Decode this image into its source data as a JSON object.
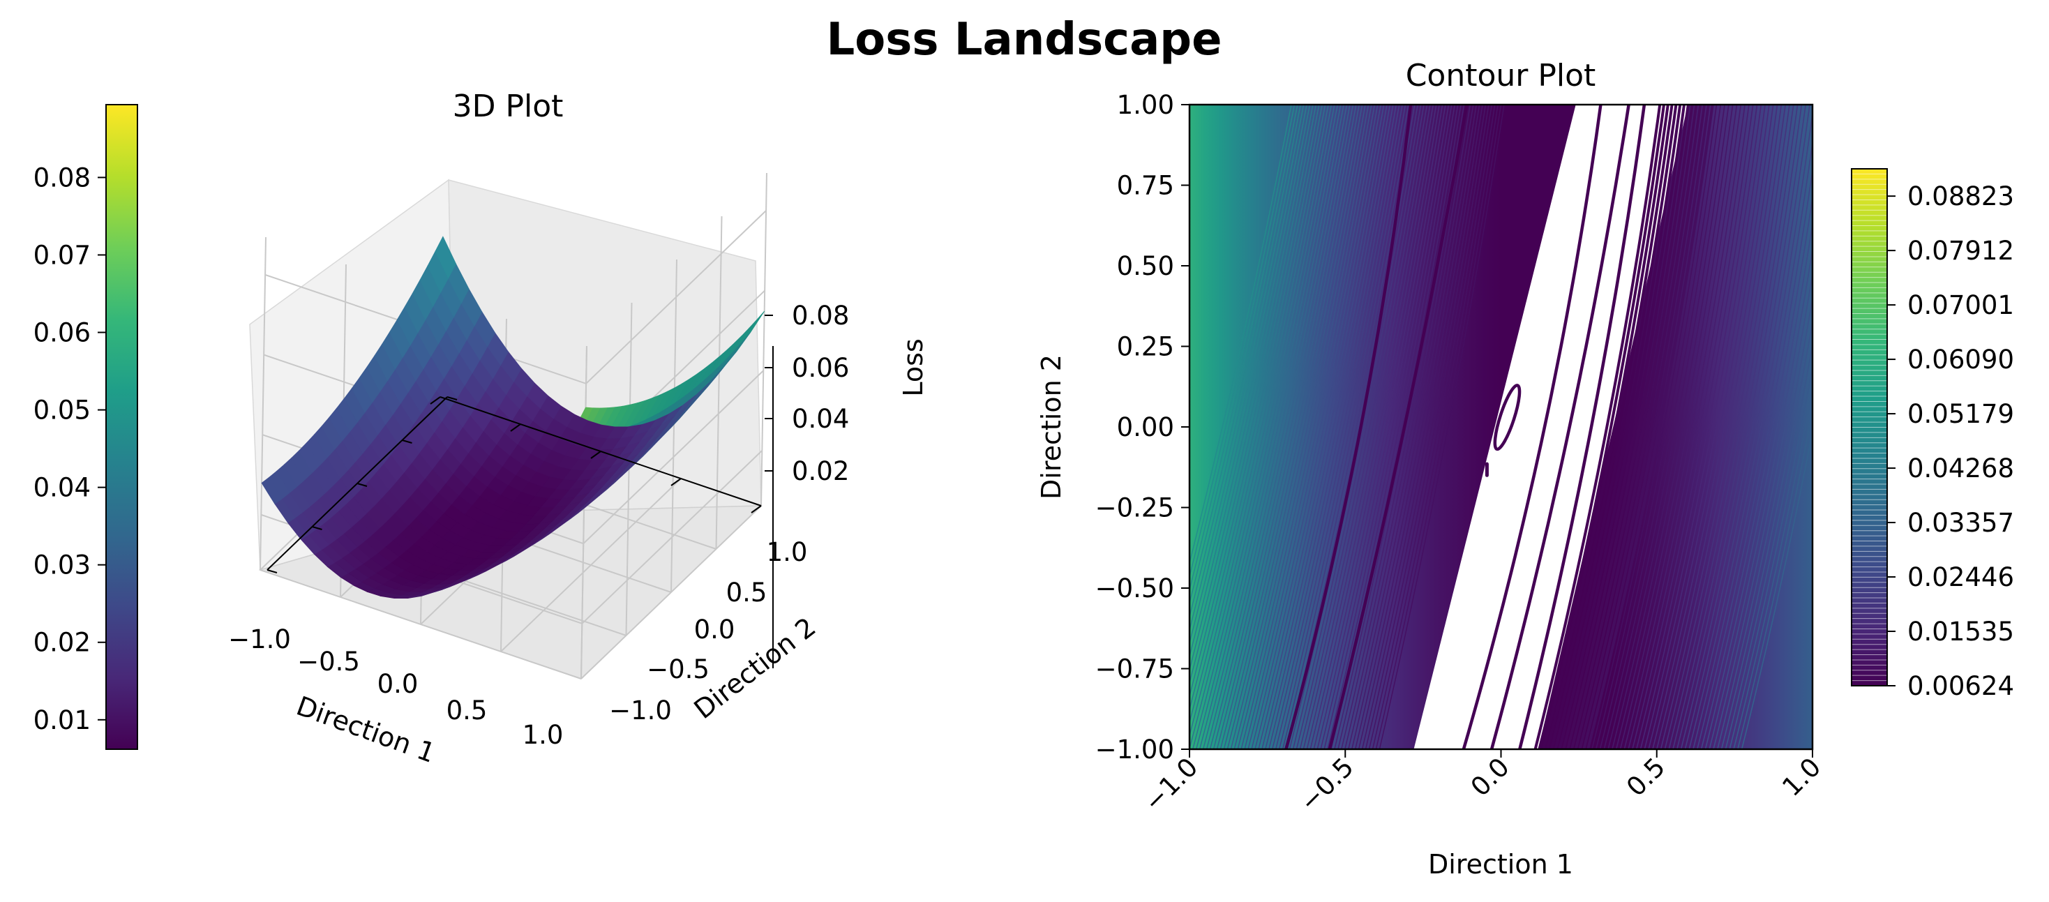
{
  "title": "Loss Landscape",
  "colors": {
    "viridis": [
      "#440154",
      "#482878",
      "#3e4989",
      "#31688e",
      "#26828e",
      "#1f9e89",
      "#35b779",
      "#6ece58",
      "#b5de2b",
      "#fde725"
    ]
  },
  "chart_data": [
    {
      "type": "surface3d",
      "title": "3D Plot",
      "xlabel": "Direction 1",
      "ylabel": "Direction 2",
      "zlabel": "Loss",
      "x_ticks": [
        "−1.0",
        "−0.5",
        "0.0",
        "0.5",
        "1.0"
      ],
      "y_ticks": [
        "−1.0",
        "−0.5",
        "0.0",
        "0.5",
        "1.0"
      ],
      "z_ticks": [
        "0.02",
        "0.04",
        "0.06",
        "0.08"
      ],
      "xlim": [
        -1,
        1
      ],
      "ylim": [
        -1,
        1
      ],
      "zlim": [
        0.0062,
        0.0894
      ],
      "colorbar": {
        "ticks": [
          "0.01",
          "0.02",
          "0.03",
          "0.04",
          "0.05",
          "0.06",
          "0.07",
          "0.08"
        ],
        "tick_values": [
          0.01,
          0.02,
          0.03,
          0.04,
          0.05,
          0.06,
          0.07,
          0.08
        ],
        "range": [
          0.0062,
          0.0894
        ],
        "cmap": "viridis"
      }
    },
    {
      "type": "contour",
      "title": "Contour Plot",
      "xlabel": "Direction 1",
      "ylabel": "Direction 2",
      "x_ticks": [
        "−1.0",
        "−0.5",
        "0.0",
        "0.5",
        "1.0"
      ],
      "x_tick_values": [
        -1,
        -0.5,
        0,
        0.5,
        1
      ],
      "y_ticks": [
        "−1.00",
        "−0.75",
        "−0.50",
        "−0.25",
        "0.00",
        "0.25",
        "0.50",
        "0.75",
        "1.00"
      ],
      "y_tick_values": [
        -1,
        -0.75,
        -0.5,
        -0.25,
        0,
        0.25,
        0.5,
        0.75,
        1
      ],
      "xlim": [
        -1,
        1
      ],
      "ylim": [
        -1,
        1
      ],
      "colorbar": {
        "ticks": [
          "0.00624",
          "0.01535",
          "0.02446",
          "0.03357",
          "0.04268",
          "0.05179",
          "0.06090",
          "0.07001",
          "0.07912",
          "0.08823"
        ],
        "tick_values": [
          0.00624,
          0.01535,
          0.02446,
          0.03357,
          0.04268,
          0.05179,
          0.0609,
          0.07001,
          0.07912,
          0.08823
        ],
        "range": [
          0.00624,
          0.0928
        ],
        "cmap": "viridis"
      }
    }
  ]
}
